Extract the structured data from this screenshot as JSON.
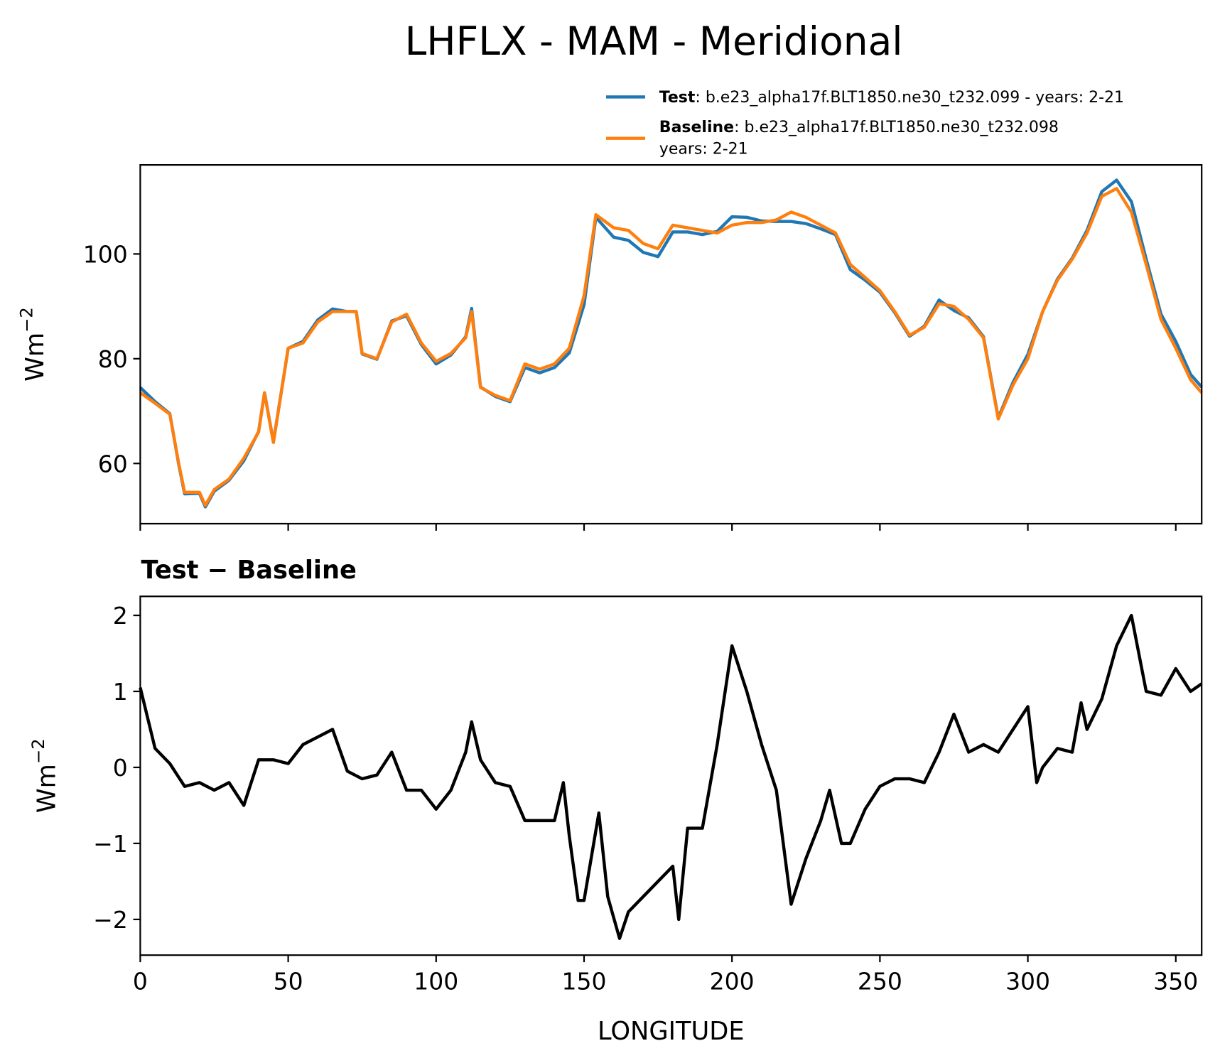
{
  "chart_data": [
    {
      "type": "line",
      "title": "LHFLX - MAM - Meridional",
      "ylabel": "Wm",
      "ylabel_sup": "−2",
      "x": [
        0,
        5,
        10,
        13,
        15,
        20,
        22,
        25,
        30,
        35,
        40,
        42,
        45,
        50,
        55,
        60,
        65,
        70,
        73,
        75,
        80,
        85,
        90,
        95,
        100,
        105,
        110,
        112,
        115,
        120,
        125,
        130,
        135,
        140,
        145,
        150,
        154,
        160,
        165,
        170,
        175,
        180,
        185,
        190,
        195,
        200,
        205,
        210,
        215,
        220,
        225,
        230,
        235,
        240,
        245,
        250,
        255,
        260,
        265,
        270,
        275,
        280,
        285,
        290,
        295,
        300,
        305,
        310,
        315,
        320,
        325,
        330,
        335,
        340,
        345,
        350,
        355,
        358.75
      ],
      "series": [
        {
          "name": "Test",
          "legend_text": ": b.e23_alpha17f.BLT1850.ne30_t232.099 - years: 2-21",
          "color": "#1f77b4",
          "values": [
            74.5,
            71.8,
            69.5,
            59.8,
            54.2,
            54.3,
            51.7,
            54.7,
            56.8,
            60.5,
            66.1,
            73.5,
            64.1,
            82,
            83.3,
            87.4,
            89.5,
            89,
            89,
            80.9,
            79.9,
            87.2,
            88.2,
            82.7,
            79,
            80.7,
            84.2,
            89.6,
            74.6,
            72.8,
            71.8,
            78.3,
            77.3,
            78.3,
            81.1,
            90.3,
            107,
            103.2,
            102.6,
            100.3,
            99.5,
            104.2,
            104.2,
            103.7,
            104.3,
            107.1,
            107,
            106.3,
            106.2,
            106.2,
            105.8,
            104.8,
            103.7,
            97,
            95,
            92.7,
            88.8,
            84.3,
            86.2,
            91.2,
            89.2,
            87.8,
            84.2,
            68.7,
            75.5,
            80.8,
            89,
            95.2,
            99.2,
            104.5,
            111.9,
            114.1,
            110,
            99,
            88.5,
            83.3,
            77,
            74.6
          ]
        },
        {
          "name": "Baseline",
          "legend_text": ": b.e23_alpha17f.BLT1850.ne30_t232.098",
          "legend_text2": "years: 2-21",
          "color": "#ff7f0e",
          "values": [
            73.5,
            71.5,
            69.4,
            60,
            54.5,
            54.5,
            52,
            55,
            57,
            61,
            66,
            73.5,
            64,
            82,
            83,
            87,
            89,
            89,
            89,
            81,
            80,
            87,
            88.5,
            83,
            79.5,
            81,
            84,
            89,
            74.5,
            73,
            72,
            79,
            78,
            79,
            82,
            92,
            107.5,
            105,
            104.5,
            102,
            101,
            105.5,
            105,
            104.5,
            104,
            105.5,
            106,
            106,
            106.5,
            108,
            107,
            105.5,
            104,
            98,
            95.5,
            93,
            89,
            84.5,
            86,
            90.5,
            90,
            87.5,
            84,
            68.5,
            75,
            80,
            89,
            95,
            99,
            104,
            111,
            112.5,
            108,
            98,
            87.5,
            82,
            76,
            73.5
          ]
        }
      ],
      "xlim": [
        0,
        358.75
      ],
      "xticks": [
        0,
        50,
        100,
        150,
        200,
        250,
        300,
        350
      ],
      "ylim": [
        48.5,
        117
      ],
      "yticks": [
        60,
        80,
        100
      ]
    },
    {
      "type": "line",
      "title": "Test − Baseline",
      "ylabel": "Wm",
      "ylabel_sup": "−2",
      "xlabel": "LONGITUDE",
      "x": [
        0,
        5,
        10,
        15,
        20,
        25,
        30,
        35,
        40,
        45,
        50,
        55,
        60,
        65,
        70,
        75,
        80,
        85,
        90,
        95,
        100,
        105,
        110,
        112,
        115,
        120,
        125,
        130,
        135,
        140,
        143,
        145,
        148,
        150,
        155,
        158,
        162,
        165,
        170,
        175,
        180,
        182,
        185,
        190,
        195,
        200,
        205,
        210,
        215,
        220,
        225,
        230,
        233,
        237,
        240,
        245,
        250,
        255,
        260,
        265,
        270,
        275,
        280,
        285,
        290,
        295,
        300,
        303,
        305,
        310,
        315,
        318,
        320,
        325,
        330,
        335,
        340,
        345,
        350,
        355,
        358.75
      ],
      "series": [
        {
          "color": "#000000",
          "values": [
            1.05,
            0.25,
            0.05,
            -0.25,
            -0.2,
            -0.3,
            -0.2,
            -0.5,
            0.1,
            0.1,
            0.05,
            0.3,
            0.4,
            0.5,
            -0.05,
            -0.15,
            -0.1,
            0.2,
            -0.3,
            -0.3,
            -0.55,
            -0.3,
            0.2,
            0.6,
            0.1,
            -0.2,
            -0.25,
            -0.7,
            -0.7,
            -0.7,
            -0.2,
            -0.9,
            -1.75,
            -1.75,
            -0.6,
            -1.7,
            -2.25,
            -1.9,
            -1.7,
            -1.5,
            -1.3,
            -2.0,
            -0.8,
            -0.8,
            0.3,
            1.6,
            1.0,
            0.3,
            -0.3,
            -1.8,
            -1.2,
            -0.7,
            -0.3,
            -1.0,
            -1.0,
            -0.55,
            -0.25,
            -0.15,
            -0.15,
            -0.2,
            0.2,
            0.7,
            0.2,
            0.3,
            0.2,
            0.5,
            0.8,
            -0.2,
            0.0,
            0.25,
            0.2,
            0.85,
            0.5,
            0.9,
            1.6,
            2.0,
            1.0,
            0.95,
            1.3,
            1.0,
            1.1
          ]
        }
      ],
      "xlim": [
        0,
        358.75
      ],
      "xticks": [
        0,
        50,
        100,
        150,
        200,
        250,
        300,
        350
      ],
      "ylim": [
        -2.47,
        2.25
      ],
      "yticks": [
        {
          "value": -2,
          "label": "−2"
        },
        {
          "value": -1,
          "label": "−1"
        },
        0,
        1,
        2
      ]
    }
  ]
}
